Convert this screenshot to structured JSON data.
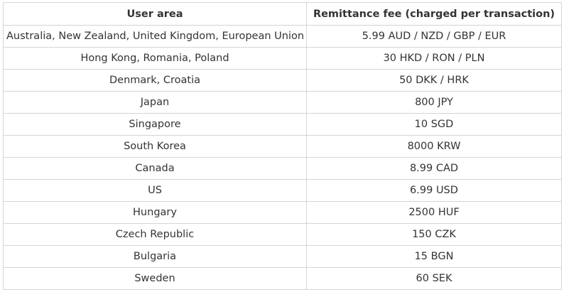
{
  "table": {
    "header": [
      "User area",
      "Remittance fee (charged per transaction)"
    ],
    "rows": [
      [
        "Australia, New Zealand, United Kingdom, European Union",
        "5.99 AUD / NZD / GBP / EUR"
      ],
      [
        "Hong Kong, Romania, Poland",
        "30 HKD / RON / PLN"
      ],
      [
        "Denmark, Croatia",
        "50 DKK / HRK"
      ],
      [
        "Japan",
        "800 JPY"
      ],
      [
        "Singapore",
        "10 SGD"
      ],
      [
        "South Korea",
        "8000 KRW"
      ],
      [
        "Canada",
        "8.99 CAD"
      ],
      [
        "US",
        "6.99 USD"
      ],
      [
        "Hungary",
        "2500 HUF"
      ],
      [
        "Czech Republic",
        "150 CZK"
      ],
      [
        "Bulgaria",
        "15 BGN"
      ],
      [
        "Sweden",
        "60 SEK"
      ]
    ]
  }
}
